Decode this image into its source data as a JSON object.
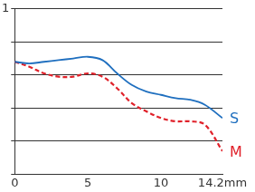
{
  "chart_data": {
    "type": "line",
    "x": [
      0,
      1,
      2,
      3,
      4,
      5,
      6,
      7,
      8,
      9,
      10,
      11,
      12,
      13,
      14.2
    ],
    "xlim": [
      0,
      14.2
    ],
    "xticks": [
      0,
      5,
      10,
      {
        "value": 14.2,
        "label": "14.2mm"
      }
    ],
    "ylim": [
      0,
      1
    ],
    "yticks": [
      {
        "value": 0,
        "label": null
      },
      {
        "value": 0.2,
        "label": null
      },
      {
        "value": 0.4,
        "label": null
      },
      {
        "value": 0.6,
        "label": null
      },
      {
        "value": 0.8,
        "label": null
      },
      1
    ],
    "grid": true,
    "series": [
      {
        "name": "S",
        "color": "#1f6fbf",
        "line_style": "solid",
        "values": [
          0.68,
          0.67,
          0.68,
          0.69,
          0.7,
          0.71,
          0.69,
          0.61,
          0.54,
          0.5,
          0.48,
          0.46,
          0.45,
          0.42,
          0.34
        ]
      },
      {
        "name": "M",
        "color": "#e0212a",
        "line_style": "dashed",
        "values": [
          0.68,
          0.65,
          0.61,
          0.59,
          0.59,
          0.61,
          0.59,
          0.52,
          0.43,
          0.38,
          0.34,
          0.32,
          0.32,
          0.3,
          0.14
        ]
      }
    ]
  }
}
